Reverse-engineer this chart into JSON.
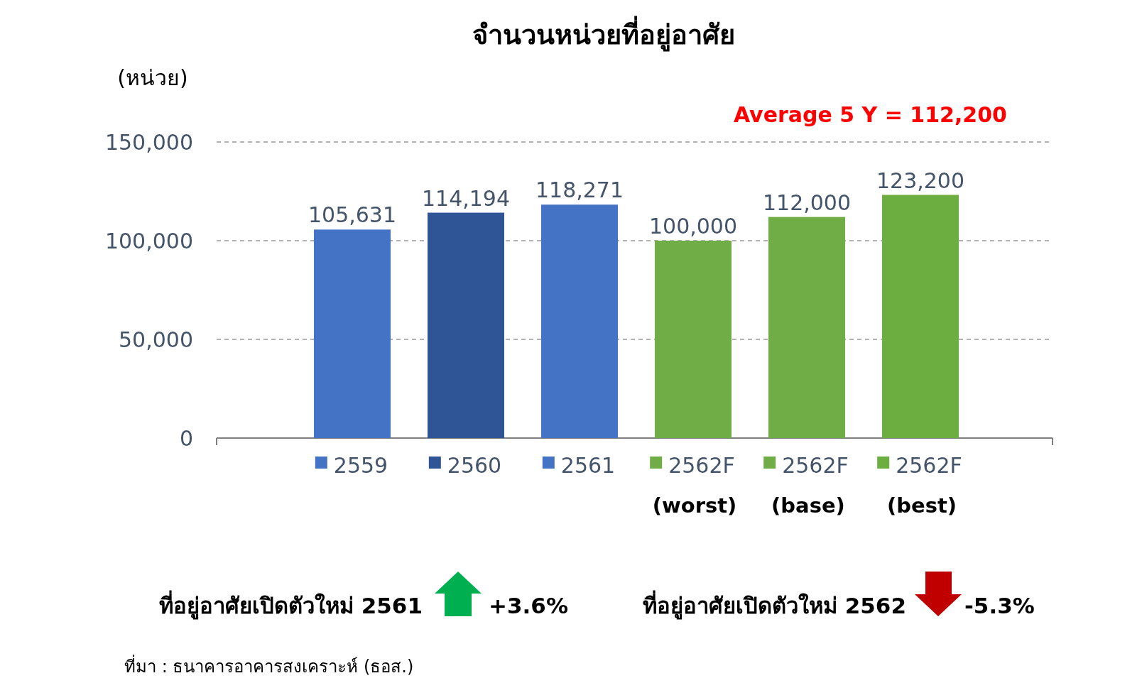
{
  "chart_data": {
    "type": "bar",
    "title": "จำนวนหน่วยที่อยู่อาศัย",
    "ylabel": "(หน่วย)",
    "categories": [
      "2559",
      "2560",
      "2561",
      "2562F **(worst)**",
      "2562F **(base)**",
      "2562F **(best)**"
    ],
    "values": [
      105631,
      114194,
      118271,
      100000,
      112000,
      123200
    ],
    "value_labels": [
      "105,631",
      "114,194",
      "118,271",
      "100,000",
      "112,000",
      "123,200"
    ],
    "colors": [
      "#4472c4",
      "#2f5597",
      "#4472c4",
      "#70ad47",
      "#70ad47",
      "#6cae3f"
    ],
    "ylim": [
      0,
      150000
    ],
    "yticks": [
      {
        "value": 0,
        "label": "0"
      },
      {
        "value": 50000,
        "label": "50,000"
      },
      {
        "value": 100000,
        "label": "100,000"
      },
      {
        "value": 150000,
        "label": "150,000"
      }
    ],
    "grid": "y",
    "annotations": [
      "Average 5 Y = 112,200",
      "ที่อยู่อาศัยเปิดตัวใหม่ 2561",
      "+3.6%",
      "ที่อยู่อาศัยเปิดตัวใหม่ 2562",
      "-5.3%",
      "ที่มา :  ธนาคารอาคารสงเคราะห์ (ธอส.)"
    ]
  }
}
